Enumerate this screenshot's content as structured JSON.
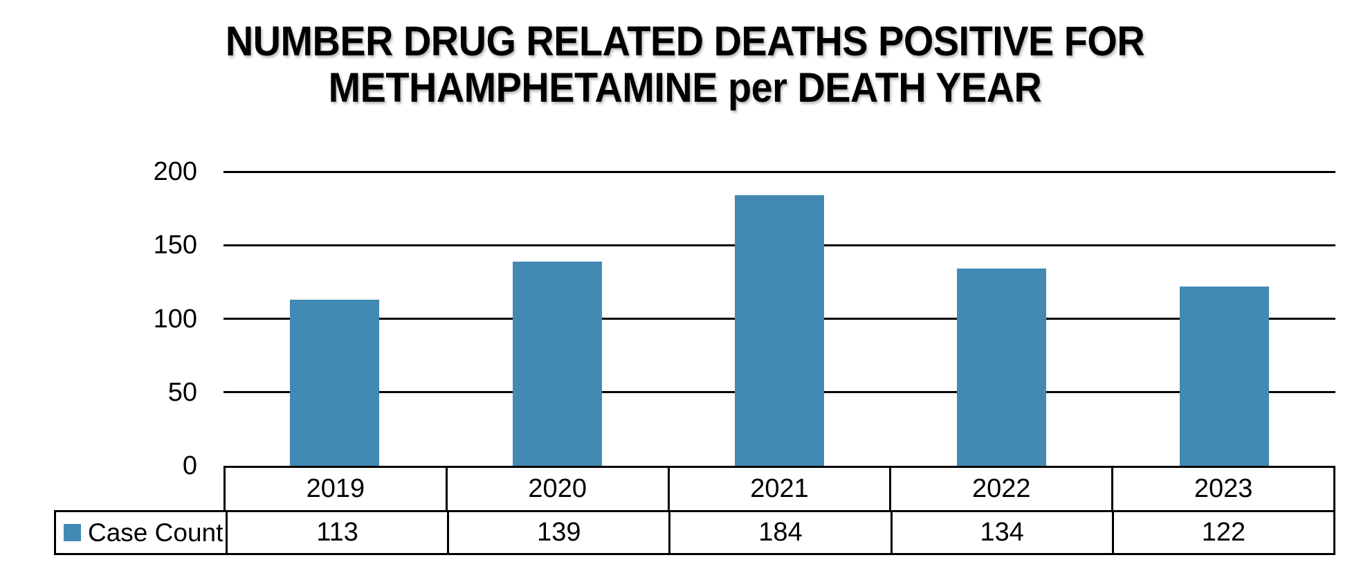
{
  "title": {
    "line1": "NUMBER DRUG RELATED DEATHS POSITIVE FOR",
    "line2": "METHAMPHETAMINE per DEATH YEAR"
  },
  "y_axis": {
    "tick_labels": [
      "200",
      "150",
      "100",
      "50",
      "0"
    ]
  },
  "legend": {
    "label": "Case Count"
  },
  "table": {
    "years": [
      "2019",
      "2020",
      "2021",
      "2022",
      "2023"
    ],
    "counts": [
      "113",
      "139",
      "184",
      "134",
      "122"
    ]
  },
  "colors": {
    "bar": "#428AB4",
    "grid": "#000000",
    "border": "#000000",
    "text": "#000000",
    "background": "#FFFFFF"
  },
  "chart_data": {
    "type": "bar",
    "title": "NUMBER DRUG RELATED DEATHS POSITIVE FOR METHAMPHETAMINE per DEATH YEAR",
    "categories": [
      "2019",
      "2020",
      "2021",
      "2022",
      "2023"
    ],
    "series": [
      {
        "name": "Case Count",
        "values": [
          113,
          139,
          184,
          134,
          122
        ]
      }
    ],
    "xlabel": "",
    "ylabel": "",
    "ylim": [
      0,
      200
    ],
    "yticks": [
      0,
      50,
      100,
      150,
      200
    ],
    "grid": "horizontal",
    "legend_position": "bottom-left",
    "bar_color": "#428AB4",
    "data_table_shown": true
  }
}
